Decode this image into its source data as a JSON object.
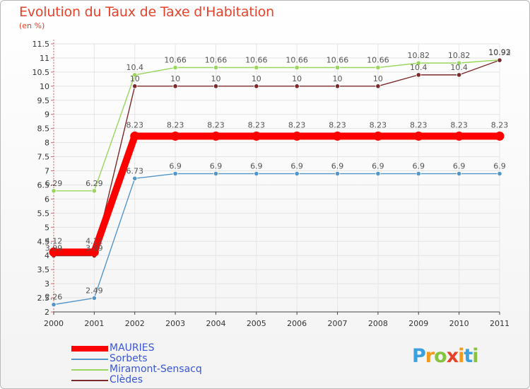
{
  "chart_data": {
    "type": "line",
    "title": "Evolution du Taux de Taxe d'Habitation",
    "ylabel": "(en %)",
    "xlabel": "",
    "categories": [
      "2000",
      "2001",
      "2002",
      "2003",
      "2004",
      "2005",
      "2006",
      "2007",
      "2008",
      "2009",
      "2010",
      "2011"
    ],
    "yticks": [
      "2",
      "2.5",
      "3",
      "3.5",
      "4",
      "4.5",
      "5",
      "5.5",
      "6",
      "6.5",
      "7",
      "7.5",
      "8",
      "8.5",
      "9",
      "9.5",
      "10",
      "10.5",
      "11",
      "11.5"
    ],
    "ylim": [
      2,
      11.5
    ],
    "grid": true,
    "series": [
      {
        "name": "MAURIES",
        "color": "#ff0000",
        "values": [
          4.12,
          4.12,
          8.23,
          8.23,
          8.23,
          8.23,
          8.23,
          8.23,
          8.23,
          8.23,
          8.23,
          8.23
        ],
        "labels": [
          "4.12",
          "4.12",
          "8.23",
          "8.23",
          "8.23",
          "8.23",
          "8.23",
          "8.23",
          "8.23",
          "8.23",
          "8.23",
          "8.23"
        ]
      },
      {
        "name": "Sorbets",
        "color": "#5596c9",
        "values": [
          2.26,
          2.49,
          6.73,
          6.9,
          6.9,
          6.9,
          6.9,
          6.9,
          6.9,
          6.9,
          6.9,
          6.9
        ],
        "labels": [
          "2.26",
          "2.49",
          "6.73",
          "6.9",
          "6.9",
          "6.9",
          "6.9",
          "6.9",
          "6.9",
          "6.9",
          "6.9",
          "6.9"
        ]
      },
      {
        "name": "Miramont-Sensacq",
        "color": "#99d65e",
        "values": [
          6.29,
          6.29,
          10.4,
          10.66,
          10.66,
          10.66,
          10.66,
          10.66,
          10.66,
          10.82,
          10.82,
          10.93
        ],
        "labels": [
          "6.29",
          "6.29",
          "10.4",
          "10.66",
          "10.66",
          "10.66",
          "10.66",
          "10.66",
          "10.66",
          "10.82",
          "10.82",
          "10.93"
        ]
      },
      {
        "name": "Clèdes",
        "color": "#7a2a2a",
        "values": [
          3.99,
          3.99,
          10,
          10,
          10,
          10,
          10,
          10,
          10,
          10.4,
          10.4,
          10.92
        ],
        "labels": [
          "3.99",
          "3.99",
          "10",
          "10",
          "10",
          "10",
          "10",
          "10",
          "10",
          "10.4",
          "10.4",
          "10.92"
        ]
      }
    ]
  },
  "logo": {
    "letters": [
      "P",
      "r",
      "o",
      "x",
      "i",
      "t",
      "i"
    ],
    "colors": [
      "#3aa0de",
      "#f29a1e",
      "#86c440",
      "#e8412a",
      "#f29a1e",
      "#3aa0de",
      "#86c440"
    ]
  }
}
